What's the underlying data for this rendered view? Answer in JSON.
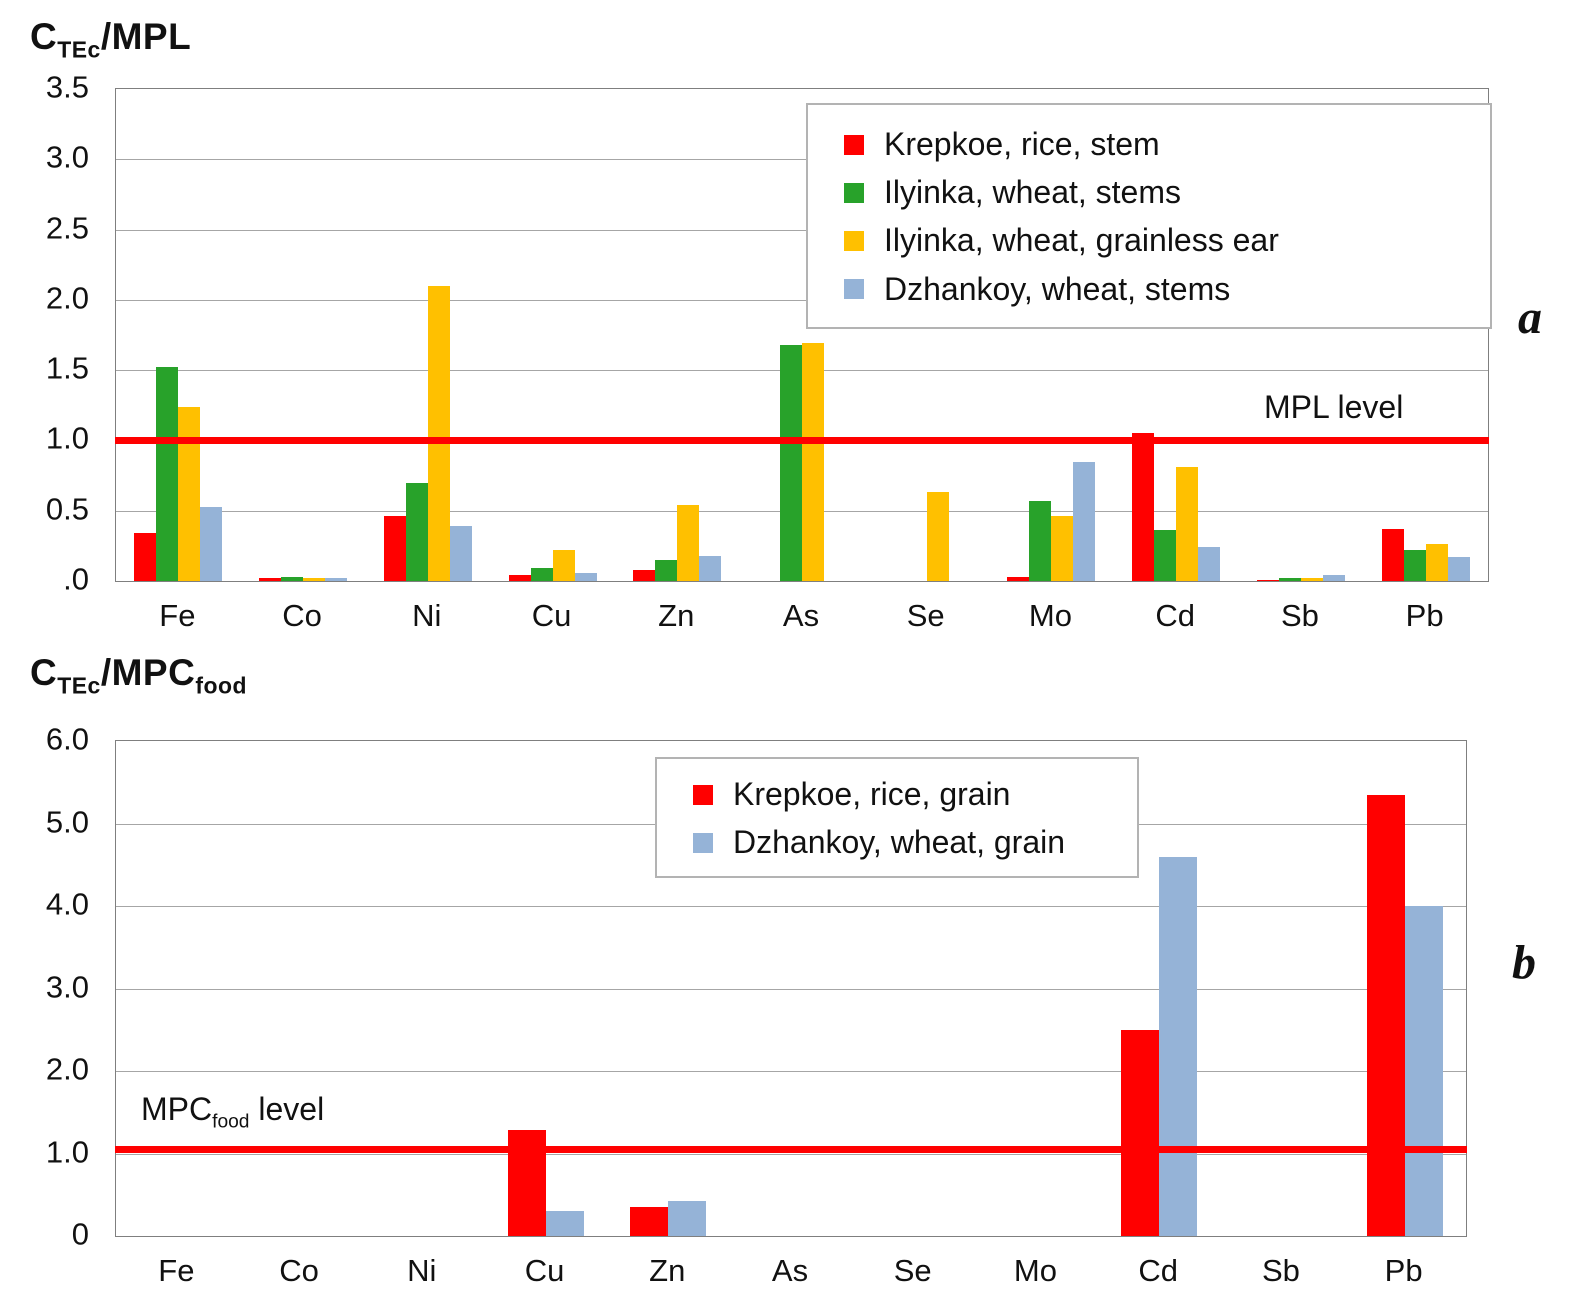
{
  "page": {
    "panel_a_label": "a",
    "panel_b_label": "b"
  },
  "chart_data": [
    {
      "id": "a",
      "type": "bar",
      "title": "CTEc/MPL",
      "title_parts": {
        "main": "C",
        "sub1": "TEc",
        "mid": "/MPL",
        "sub2": ""
      },
      "categories": [
        "Fe",
        "Co",
        "Ni",
        "Cu",
        "Zn",
        "As",
        "Se",
        "Mo",
        "Cd",
        "Sb",
        "Pb"
      ],
      "series": [
        {
          "name": "Krepkoe, rice, stem",
          "color": "#ff0000",
          "values": [
            0.34,
            0.02,
            0.46,
            0.04,
            0.08,
            0,
            0,
            0.03,
            1.05,
            0.01,
            0.37
          ]
        },
        {
          "name": "Ilyinka, wheat, stems",
          "color": "#28a22a",
          "values": [
            1.52,
            0.03,
            0.7,
            0.09,
            0.15,
            1.68,
            0,
            0.57,
            0.36,
            0.02,
            0.22
          ]
        },
        {
          "name": "Ilyinka, wheat, grainless ear",
          "color": "#ffc000",
          "values": [
            1.24,
            0.02,
            2.1,
            0.22,
            0.54,
            1.69,
            0.63,
            0.46,
            0.81,
            0.02,
            0.26
          ]
        },
        {
          "name": "Dzhankoy, wheat, stems",
          "color": "#95b3d7",
          "values": [
            0.53,
            0.02,
            0.39,
            0.06,
            0.18,
            0,
            0,
            0.85,
            0.24,
            0.04,
            0.17
          ]
        }
      ],
      "ylim": [
        0,
        3.5
      ],
      "ytick_step": 0.5,
      "ytick_labels": [
        "3.5",
        "3.0",
        "2.5",
        "2.0",
        "1.5",
        "1.0",
        "0.5",
        ".0"
      ],
      "xlabel": "",
      "ylabel": "",
      "grid": true,
      "legend_position": "top-right",
      "ref_line": {
        "value": 1.0,
        "color": "#ff0000",
        "label_main": "MPL level",
        "label_sub": "",
        "label_rest": ""
      }
    },
    {
      "id": "b",
      "type": "bar",
      "title": "CTEc/MPCfood",
      "title_parts": {
        "main": "C",
        "sub1": "TEc",
        "mid": "/MPC",
        "sub2": "food"
      },
      "categories": [
        "Fe",
        "Co",
        "Ni",
        "Cu",
        "Zn",
        "As",
        "Se",
        "Mo",
        "Cd",
        "Sb",
        "Pb"
      ],
      "series": [
        {
          "name": "Krepkoe, rice, grain",
          "color": "#ff0000",
          "values": [
            0,
            0,
            0,
            1.28,
            0.35,
            0,
            0,
            0,
            2.5,
            0,
            5.35
          ]
        },
        {
          "name": "Dzhankoy, wheat, grain",
          "color": "#95b3d7",
          "values": [
            0,
            0,
            0,
            0.3,
            0.42,
            0,
            0,
            0,
            4.6,
            0,
            4.0
          ]
        }
      ],
      "ylim": [
        0,
        6.0
      ],
      "ytick_step": 1.0,
      "ytick_labels": [
        "6.0",
        "5.0",
        "4.0",
        "3.0",
        "2.0",
        "1.0",
        "0"
      ],
      "xlabel": "",
      "ylabel": "",
      "grid": true,
      "legend_position": "top-center",
      "ref_line": {
        "value": 1.05,
        "color": "#ff0000",
        "label_main": "MPC",
        "label_sub": "food",
        "label_rest": " level"
      }
    }
  ]
}
